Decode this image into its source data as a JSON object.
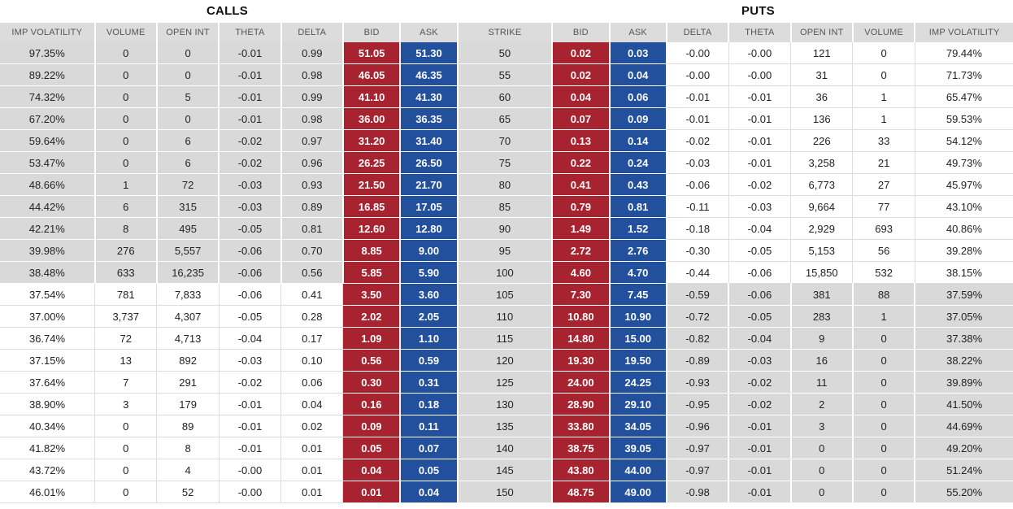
{
  "header": {
    "calls_label": "CALLS",
    "puts_label": "PUTS"
  },
  "columns": [
    "IMP VOLATILITY",
    "VOLUME",
    "OPEN INT",
    "THETA",
    "DELTA",
    "BID",
    "ASK",
    "STRIKE",
    "BID",
    "ASK",
    "DELTA",
    "THETA",
    "OPEN INT",
    "VOLUME",
    "IMP VOLATILITY"
  ],
  "colors": {
    "bid": "#a82330",
    "ask": "#23509c",
    "in_the_money": "#d9d9d9",
    "header": "#dcdcdc"
  },
  "rows": [
    {
      "calls": {
        "iv": "97.35%",
        "volume": "0",
        "open_int": "0",
        "theta": "-0.01",
        "delta": "0.99",
        "bid": "51.05",
        "ask": "51.30"
      },
      "strike": "50",
      "puts": {
        "bid": "0.02",
        "ask": "0.03",
        "delta": "-0.00",
        "theta": "-0.00",
        "open_int": "121",
        "volume": "0",
        "iv": "79.44%"
      }
    },
    {
      "calls": {
        "iv": "89.22%",
        "volume": "0",
        "open_int": "0",
        "theta": "-0.01",
        "delta": "0.98",
        "bid": "46.05",
        "ask": "46.35"
      },
      "strike": "55",
      "puts": {
        "bid": "0.02",
        "ask": "0.04",
        "delta": "-0.00",
        "theta": "-0.00",
        "open_int": "31",
        "volume": "0",
        "iv": "71.73%"
      }
    },
    {
      "calls": {
        "iv": "74.32%",
        "volume": "0",
        "open_int": "5",
        "theta": "-0.01",
        "delta": "0.99",
        "bid": "41.10",
        "ask": "41.30"
      },
      "strike": "60",
      "puts": {
        "bid": "0.04",
        "ask": "0.06",
        "delta": "-0.01",
        "theta": "-0.01",
        "open_int": "36",
        "volume": "1",
        "iv": "65.47%"
      }
    },
    {
      "calls": {
        "iv": "67.20%",
        "volume": "0",
        "open_int": "0",
        "theta": "-0.01",
        "delta": "0.98",
        "bid": "36.00",
        "ask": "36.35"
      },
      "strike": "65",
      "puts": {
        "bid": "0.07",
        "ask": "0.09",
        "delta": "-0.01",
        "theta": "-0.01",
        "open_int": "136",
        "volume": "1",
        "iv": "59.53%"
      }
    },
    {
      "calls": {
        "iv": "59.64%",
        "volume": "0",
        "open_int": "6",
        "theta": "-0.02",
        "delta": "0.97",
        "bid": "31.20",
        "ask": "31.40"
      },
      "strike": "70",
      "puts": {
        "bid": "0.13",
        "ask": "0.14",
        "delta": "-0.02",
        "theta": "-0.01",
        "open_int": "226",
        "volume": "33",
        "iv": "54.12%"
      }
    },
    {
      "calls": {
        "iv": "53.47%",
        "volume": "0",
        "open_int": "6",
        "theta": "-0.02",
        "delta": "0.96",
        "bid": "26.25",
        "ask": "26.50"
      },
      "strike": "75",
      "puts": {
        "bid": "0.22",
        "ask": "0.24",
        "delta": "-0.03",
        "theta": "-0.01",
        "open_int": "3,258",
        "volume": "21",
        "iv": "49.73%"
      }
    },
    {
      "calls": {
        "iv": "48.66%",
        "volume": "1",
        "open_int": "72",
        "theta": "-0.03",
        "delta": "0.93",
        "bid": "21.50",
        "ask": "21.70"
      },
      "strike": "80",
      "puts": {
        "bid": "0.41",
        "ask": "0.43",
        "delta": "-0.06",
        "theta": "-0.02",
        "open_int": "6,773",
        "volume": "27",
        "iv": "45.97%"
      }
    },
    {
      "calls": {
        "iv": "44.42%",
        "volume": "6",
        "open_int": "315",
        "theta": "-0.03",
        "delta": "0.89",
        "bid": "16.85",
        "ask": "17.05"
      },
      "strike": "85",
      "puts": {
        "bid": "0.79",
        "ask": "0.81",
        "delta": "-0.11",
        "theta": "-0.03",
        "open_int": "9,664",
        "volume": "77",
        "iv": "43.10%"
      }
    },
    {
      "calls": {
        "iv": "42.21%",
        "volume": "8",
        "open_int": "495",
        "theta": "-0.05",
        "delta": "0.81",
        "bid": "12.60",
        "ask": "12.80"
      },
      "strike": "90",
      "puts": {
        "bid": "1.49",
        "ask": "1.52",
        "delta": "-0.18",
        "theta": "-0.04",
        "open_int": "2,929",
        "volume": "693",
        "iv": "40.86%"
      }
    },
    {
      "calls": {
        "iv": "39.98%",
        "volume": "276",
        "open_int": "5,557",
        "theta": "-0.06",
        "delta": "0.70",
        "bid": "8.85",
        "ask": "9.00"
      },
      "strike": "95",
      "puts": {
        "bid": "2.72",
        "ask": "2.76",
        "delta": "-0.30",
        "theta": "-0.05",
        "open_int": "5,153",
        "volume": "56",
        "iv": "39.28%"
      }
    },
    {
      "calls": {
        "iv": "38.48%",
        "volume": "633",
        "open_int": "16,235",
        "theta": "-0.06",
        "delta": "0.56",
        "bid": "5.85",
        "ask": "5.90"
      },
      "strike": "100",
      "puts": {
        "bid": "4.60",
        "ask": "4.70",
        "delta": "-0.44",
        "theta": "-0.06",
        "open_int": "15,850",
        "volume": "532",
        "iv": "38.15%"
      }
    },
    {
      "calls": {
        "iv": "37.54%",
        "volume": "781",
        "open_int": "7,833",
        "theta": "-0.06",
        "delta": "0.41",
        "bid": "3.50",
        "ask": "3.60"
      },
      "strike": "105",
      "puts": {
        "bid": "7.30",
        "ask": "7.45",
        "delta": "-0.59",
        "theta": "-0.06",
        "open_int": "381",
        "volume": "88",
        "iv": "37.59%"
      }
    },
    {
      "calls": {
        "iv": "37.00%",
        "volume": "3,737",
        "open_int": "4,307",
        "theta": "-0.05",
        "delta": "0.28",
        "bid": "2.02",
        "ask": "2.05"
      },
      "strike": "110",
      "puts": {
        "bid": "10.80",
        "ask": "10.90",
        "delta": "-0.72",
        "theta": "-0.05",
        "open_int": "283",
        "volume": "1",
        "iv": "37.05%"
      }
    },
    {
      "calls": {
        "iv": "36.74%",
        "volume": "72",
        "open_int": "4,713",
        "theta": "-0.04",
        "delta": "0.17",
        "bid": "1.09",
        "ask": "1.10"
      },
      "strike": "115",
      "puts": {
        "bid": "14.80",
        "ask": "15.00",
        "delta": "-0.82",
        "theta": "-0.04",
        "open_int": "9",
        "volume": "0",
        "iv": "37.38%"
      }
    },
    {
      "calls": {
        "iv": "37.15%",
        "volume": "13",
        "open_int": "892",
        "theta": "-0.03",
        "delta": "0.10",
        "bid": "0.56",
        "ask": "0.59"
      },
      "strike": "120",
      "puts": {
        "bid": "19.30",
        "ask": "19.50",
        "delta": "-0.89",
        "theta": "-0.03",
        "open_int": "16",
        "volume": "0",
        "iv": "38.22%"
      }
    },
    {
      "calls": {
        "iv": "37.64%",
        "volume": "7",
        "open_int": "291",
        "theta": "-0.02",
        "delta": "0.06",
        "bid": "0.30",
        "ask": "0.31"
      },
      "strike": "125",
      "puts": {
        "bid": "24.00",
        "ask": "24.25",
        "delta": "-0.93",
        "theta": "-0.02",
        "open_int": "11",
        "volume": "0",
        "iv": "39.89%"
      }
    },
    {
      "calls": {
        "iv": "38.90%",
        "volume": "3",
        "open_int": "179",
        "theta": "-0.01",
        "delta": "0.04",
        "bid": "0.16",
        "ask": "0.18"
      },
      "strike": "130",
      "puts": {
        "bid": "28.90",
        "ask": "29.10",
        "delta": "-0.95",
        "theta": "-0.02",
        "open_int": "2",
        "volume": "0",
        "iv": "41.50%"
      }
    },
    {
      "calls": {
        "iv": "40.34%",
        "volume": "0",
        "open_int": "89",
        "theta": "-0.01",
        "delta": "0.02",
        "bid": "0.09",
        "ask": "0.11"
      },
      "strike": "135",
      "puts": {
        "bid": "33.80",
        "ask": "34.05",
        "delta": "-0.96",
        "theta": "-0.01",
        "open_int": "3",
        "volume": "0",
        "iv": "44.69%"
      }
    },
    {
      "calls": {
        "iv": "41.82%",
        "volume": "0",
        "open_int": "8",
        "theta": "-0.01",
        "delta": "0.01",
        "bid": "0.05",
        "ask": "0.07"
      },
      "strike": "140",
      "puts": {
        "bid": "38.75",
        "ask": "39.05",
        "delta": "-0.97",
        "theta": "-0.01",
        "open_int": "0",
        "volume": "0",
        "iv": "49.20%"
      }
    },
    {
      "calls": {
        "iv": "43.72%",
        "volume": "0",
        "open_int": "4",
        "theta": "-0.00",
        "delta": "0.01",
        "bid": "0.04",
        "ask": "0.05"
      },
      "strike": "145",
      "puts": {
        "bid": "43.80",
        "ask": "44.00",
        "delta": "-0.97",
        "theta": "-0.01",
        "open_int": "0",
        "volume": "0",
        "iv": "51.24%"
      }
    },
    {
      "calls": {
        "iv": "46.01%",
        "volume": "0",
        "open_int": "52",
        "theta": "-0.00",
        "delta": "0.01",
        "bid": "0.01",
        "ask": "0.04"
      },
      "strike": "150",
      "puts": {
        "bid": "48.75",
        "ask": "49.00",
        "delta": "-0.98",
        "theta": "-0.01",
        "open_int": "0",
        "volume": "0",
        "iv": "55.20%"
      }
    }
  ]
}
